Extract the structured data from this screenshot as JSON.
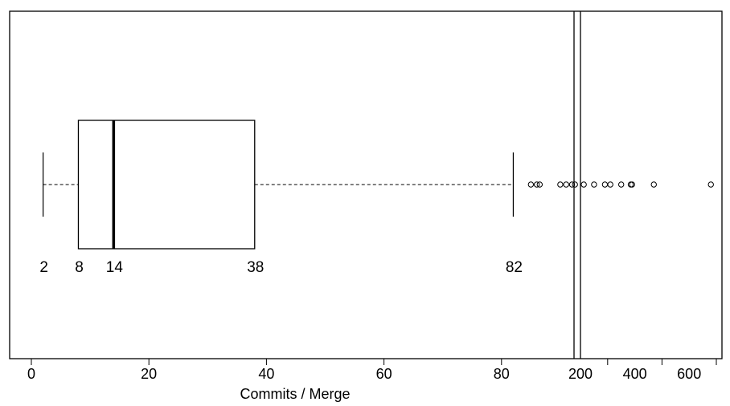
{
  "chart_data": {
    "type": "boxplot",
    "xlabel": "Commits / Merge",
    "orientation": "horizontal",
    "axis_break": true,
    "stats": {
      "min": 2,
      "q1": 8,
      "median": 14,
      "q3": 38,
      "whisker_high": 82
    },
    "stat_labels": [
      "2",
      "8",
      "14",
      "38",
      "82"
    ],
    "outliers": [
      85,
      86,
      86.5,
      90,
      91,
      92,
      92.5,
      94,
      250,
      290,
      310,
      350,
      385,
      390,
      470,
      680
    ],
    "x_ticks_linear": [
      {
        "value": 0,
        "label": "0"
      },
      {
        "value": 20,
        "label": "20"
      },
      {
        "value": 40,
        "label": "40"
      },
      {
        "value": 60,
        "label": "60"
      },
      {
        "value": 80,
        "label": "80"
      }
    ],
    "x_ticks_right": [
      {
        "value": 200,
        "label": "200"
      },
      {
        "value": 300,
        "label": ""
      },
      {
        "value": 400,
        "label": "400"
      },
      {
        "value": 500,
        "label": ""
      },
      {
        "value": 600,
        "label": "600"
      },
      {
        "value": 700,
        "label": ""
      }
    ],
    "xlim_left": [
      0,
      92
    ],
    "xlim_right": [
      200,
      700
    ]
  }
}
